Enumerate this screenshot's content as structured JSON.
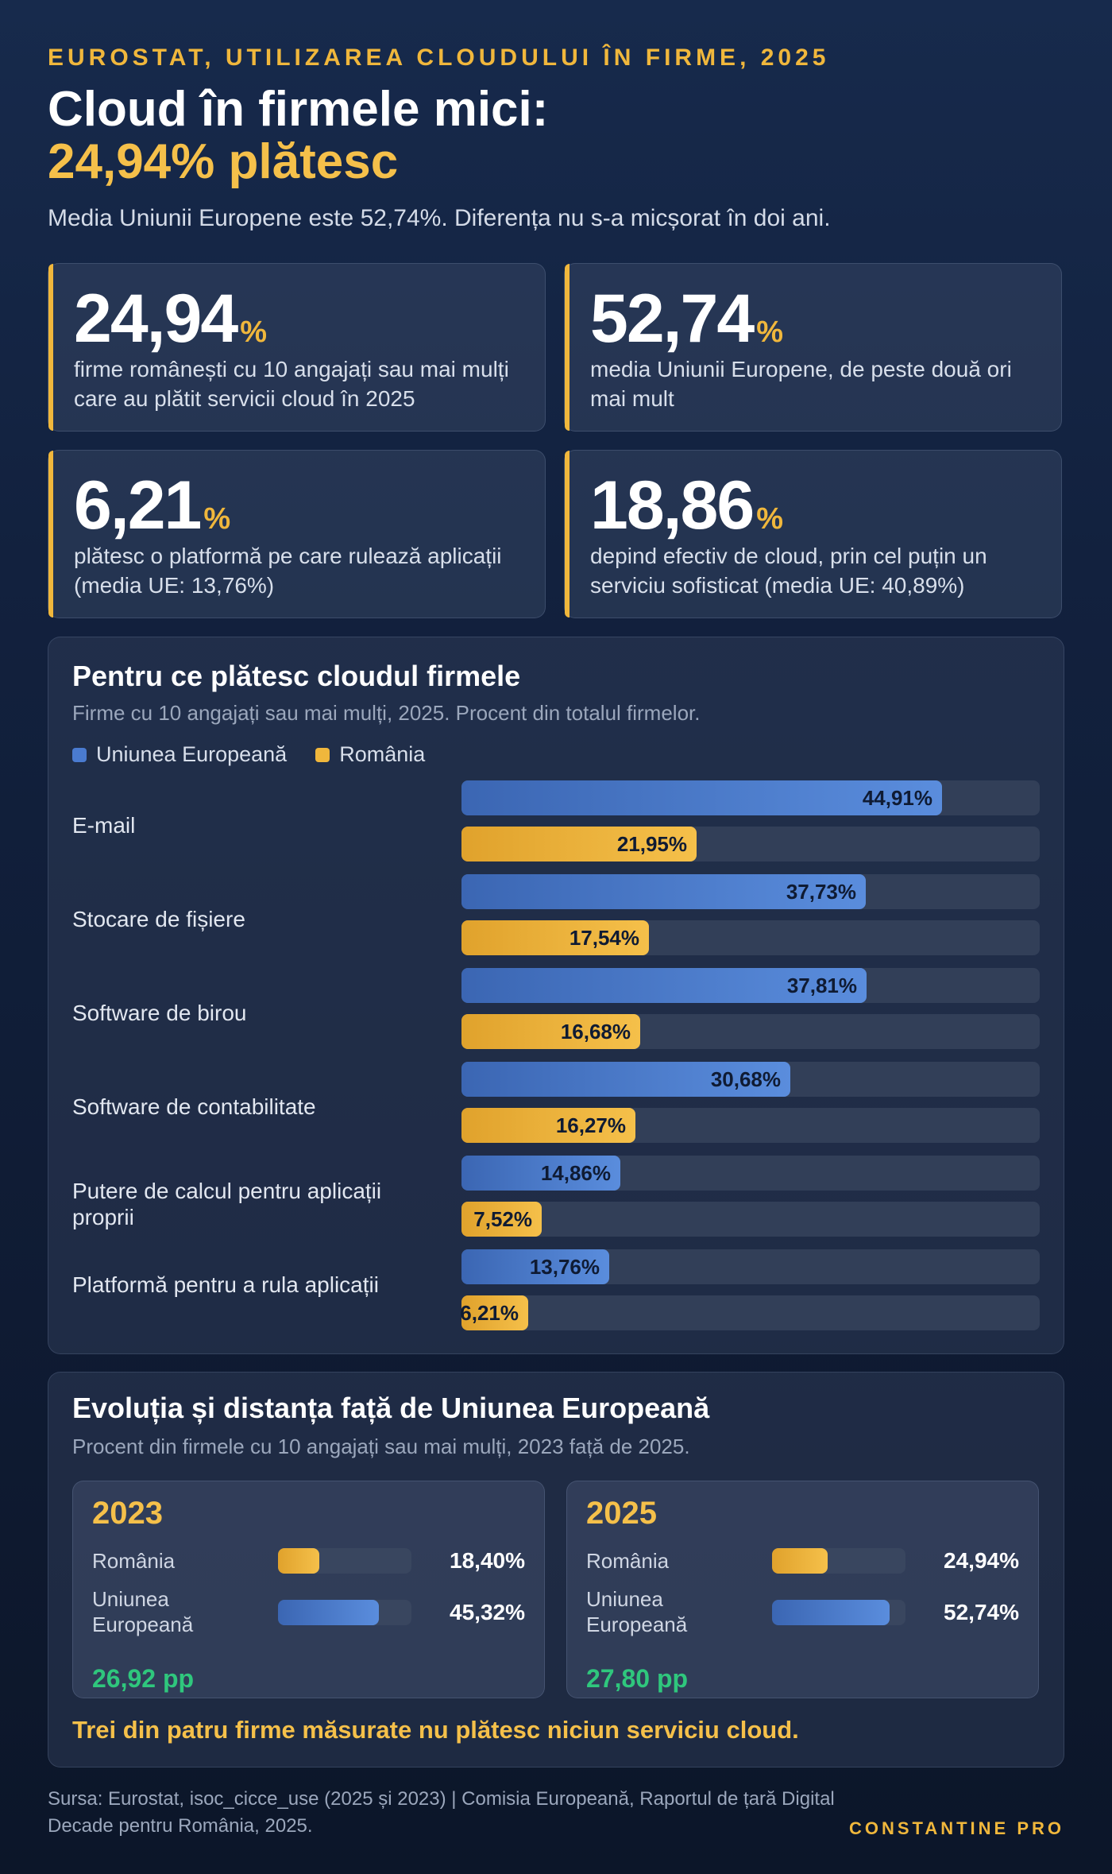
{
  "header": {
    "kicker": "EUROSTAT, UTILIZAREA CLOUDULUI ÎN FIRME, 2025",
    "title_line1": "Cloud în firmele mici:",
    "title_line2": "24,94% plătesc",
    "subtitle": "Media Uniunii Europene este 52,74%. Diferența nu s-a micșorat în doi ani."
  },
  "stats": [
    {
      "value": "24,94",
      "unit": "%",
      "desc": "firme românești cu 10 angajați sau mai mulți care au plătit servicii cloud în 2025"
    },
    {
      "value": "52,74",
      "unit": "%",
      "desc": "media Uniunii Europene, de peste două ori mai mult"
    },
    {
      "value": "6,21",
      "unit": "%",
      "desc": "plătesc o platformă pe care rulează aplicații (media UE: 13,76%)"
    },
    {
      "value": "18,86",
      "unit": "%",
      "desc": "depind efectiv de cloud, prin cel puțin un serviciu sofisticat (media UE: 40,89%)"
    }
  ],
  "chart_data": {
    "type": "bar",
    "orientation": "horizontal",
    "title": "Pentru ce plătesc cloudul firmele",
    "subtitle": "Firme cu 10 angajați sau mai mulți, 2025. Procent din totalul firmelor.",
    "legend_position": "top-left",
    "xlim": [
      0,
      54
    ],
    "categories": [
      "E-mail",
      "Stocare de fișiere",
      "Software de birou",
      "Software de contabilitate",
      "Putere de calcul pentru aplicații proprii",
      "Platformă pentru a rula aplicații"
    ],
    "series": [
      {
        "name": "Uniunea Europeană",
        "key": "eu",
        "color": "#4a7bd0",
        "values": [
          44.91,
          37.73,
          37.81,
          30.68,
          14.86,
          13.76
        ],
        "labels": [
          "44,91%",
          "37,73%",
          "37,81%",
          "30,68%",
          "14,86%",
          "13,76%"
        ]
      },
      {
        "name": "România",
        "key": "ro",
        "color": "#f0b73c",
        "values": [
          21.95,
          17.54,
          16.68,
          16.27,
          7.52,
          6.21
        ],
        "labels": [
          "21,95%",
          "17,54%",
          "16,68%",
          "16,27%",
          "7,52%",
          "6,21%"
        ]
      }
    ]
  },
  "evolution": {
    "title": "Evoluția și distanța față de Uniunea Europeană",
    "subtitle": "Procent din firmele cu 10 angajați sau mai mulți, 2023 față de 2025.",
    "years": [
      {
        "year": "2023",
        "ro_label": "România",
        "ro_value": 18.4,
        "ro_text": "18,40%",
        "eu_label": "Uniunea Europeană",
        "eu_value": 45.32,
        "eu_text": "45,32%",
        "gap": "26,92 pp"
      },
      {
        "year": "2025",
        "ro_label": "România",
        "ro_value": 24.94,
        "ro_text": "24,94%",
        "eu_label": "Uniunea Europeană",
        "eu_value": 52.74,
        "eu_text": "52,74%",
        "gap": "27,80 pp"
      }
    ],
    "scale_max": 60,
    "note": "Trei din patru firme măsurate nu plătesc niciun serviciu cloud."
  },
  "footer": {
    "source": "Sursa: Eurostat, isoc_cicce_use (2025 și 2023) | Comisia Europeană, Raportul de țară Digital Decade pentru România, 2025.",
    "brand": "CONSTANTINE PRO"
  }
}
